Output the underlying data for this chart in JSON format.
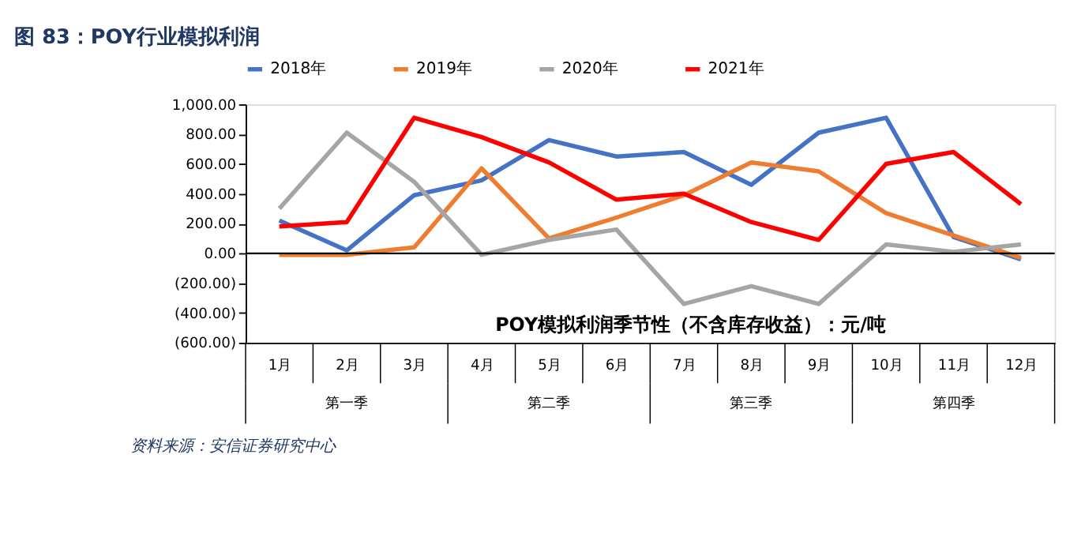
{
  "chart_data": {
    "type": "line",
    "title": "图 83：POY行业模拟利润",
    "categories": [
      "1月",
      "2月",
      "3月",
      "4月",
      "5月",
      "6月",
      "7月",
      "8月",
      "9月",
      "10月",
      "11月",
      "12月"
    ],
    "series": [
      {
        "name": "2018年",
        "color": "#4472c4",
        "values": [
          220,
          20,
          390,
          490,
          760,
          650,
          680,
          460,
          810,
          910,
          110,
          -40
        ]
      },
      {
        "name": "2019年",
        "color": "#ed7d31",
        "values": [
          -10,
          -10,
          40,
          570,
          100,
          240,
          390,
          610,
          550,
          270,
          120,
          -30
        ]
      },
      {
        "name": "2020年",
        "color": "#a5a5a5",
        "values": [
          300,
          810,
          480,
          -10,
          90,
          160,
          -340,
          -220,
          -340,
          60,
          10,
          60
        ]
      },
      {
        "name": "2021年",
        "color": "#ff0000",
        "values": [
          180,
          210,
          910,
          780,
          610,
          360,
          400,
          210,
          90,
          600,
          680,
          330
        ]
      }
    ],
    "ylim": [
      -600,
      1000
    ],
    "yticks": [
      {
        "value": -600,
        "label": "(600.00)"
      },
      {
        "value": -400,
        "label": "(400.00)"
      },
      {
        "value": -200,
        "label": "(200.00)"
      },
      {
        "value": 0,
        "label": "0.00"
      },
      {
        "value": 200,
        "label": "200.00"
      },
      {
        "value": 400,
        "label": "400.00"
      },
      {
        "value": 600,
        "label": "600.00"
      },
      {
        "value": 800,
        "label": "800.00"
      },
      {
        "value": 1000,
        "label": "1,000.00"
      }
    ],
    "ref_lines": [
      {
        "axis": "y",
        "value": 0,
        "color": "#000000"
      }
    ],
    "annotations": [
      "POY模拟利润季节性（不含库存收益）：元/吨",
      "第一季",
      "第二季",
      "第三季",
      "第四季",
      "资料来源：安信证券研究中心"
    ],
    "grid": false,
    "legend": "top",
    "marker": "none",
    "line_style": "solid"
  }
}
